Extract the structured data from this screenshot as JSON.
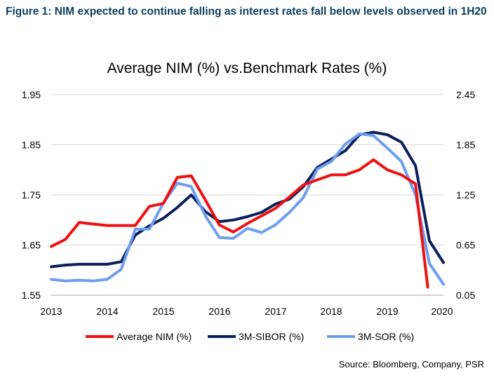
{
  "figure": {
    "title": "Figure 1: NIM expected to continue falling as interest rates fall below levels observed in 1H20",
    "source": "Source: Bloomberg, Company, PSR"
  },
  "colors": {
    "title_text": "#0b3d5c",
    "nim": "#ee1111",
    "sibor": "#0a1f5c",
    "sor": "#6e9ef0",
    "grid": "#d9d9d9"
  },
  "chart_data": {
    "type": "line",
    "title": "Average NIM (%) vs.Benchmark Rates (%)",
    "xlabel": "",
    "ylabel": "",
    "x_ticks": [
      "2013",
      "2014",
      "2015",
      "2016",
      "2017",
      "2018",
      "2019",
      "2020"
    ],
    "xlim": [
      2013,
      2020
    ],
    "ylim_left": [
      1.55,
      1.95
    ],
    "ylim_right": [
      0.05,
      2.45
    ],
    "yticks_left": [
      "1.55",
      "1.65",
      "1.75",
      "1.85",
      "1.95"
    ],
    "yticks_right": [
      "0.05",
      "0.65",
      "1.25",
      "1.85",
      "2.45"
    ],
    "grid": "horizontal",
    "legend": "bottom",
    "series": [
      {
        "name": "Average NIM (%)",
        "axis": "left",
        "x": [
          2013.0,
          2013.25,
          2013.5,
          2013.75,
          2014.0,
          2014.25,
          2014.5,
          2014.75,
          2015.0,
          2015.25,
          2015.5,
          2015.75,
          2016.0,
          2016.25,
          2016.5,
          2016.75,
          2017.0,
          2017.25,
          2017.5,
          2017.75,
          2018.0,
          2018.25,
          2018.5,
          2018.75,
          2019.0,
          2019.25,
          2019.5,
          2019.72
        ],
        "y": [
          1.647,
          1.661,
          1.695,
          1.692,
          1.689,
          1.689,
          1.689,
          1.727,
          1.733,
          1.785,
          1.788,
          1.74,
          1.69,
          1.676,
          1.693,
          1.708,
          1.723,
          1.746,
          1.77,
          1.78,
          1.79,
          1.79,
          1.8,
          1.82,
          1.8,
          1.79,
          1.772,
          1.566
        ]
      },
      {
        "name": "3M-SIBOR (%)",
        "axis": "right",
        "x": [
          2013.0,
          2013.25,
          2013.5,
          2013.75,
          2014.0,
          2014.25,
          2014.5,
          2014.75,
          2015.0,
          2015.25,
          2015.5,
          2015.75,
          2016.0,
          2016.25,
          2016.5,
          2016.75,
          2017.0,
          2017.25,
          2017.5,
          2017.75,
          2018.0,
          2018.25,
          2018.5,
          2018.75,
          2019.0,
          2019.25,
          2019.5,
          2019.75,
          2020.0
        ],
        "y": [
          0.39,
          0.41,
          0.42,
          0.42,
          0.42,
          0.45,
          0.77,
          0.88,
          0.97,
          1.1,
          1.25,
          1.05,
          0.93,
          0.95,
          0.99,
          1.04,
          1.14,
          1.2,
          1.35,
          1.58,
          1.68,
          1.78,
          1.97,
          2.0,
          1.97,
          1.88,
          1.6,
          0.7,
          0.44
        ]
      },
      {
        "name": "3M-SOR (%)",
        "axis": "right",
        "x": [
          2013.0,
          2013.25,
          2013.5,
          2013.75,
          2014.0,
          2014.25,
          2014.5,
          2014.75,
          2015.0,
          2015.25,
          2015.5,
          2015.75,
          2016.0,
          2016.25,
          2016.5,
          2016.75,
          2017.0,
          2017.25,
          2017.5,
          2017.75,
          2018.0,
          2018.25,
          2018.5,
          2018.75,
          2019.0,
          2019.25,
          2019.5,
          2019.75,
          2020.0
        ],
        "y": [
          0.24,
          0.22,
          0.23,
          0.22,
          0.24,
          0.36,
          0.84,
          0.84,
          1.15,
          1.39,
          1.35,
          1.0,
          0.74,
          0.73,
          0.85,
          0.8,
          0.89,
          1.04,
          1.22,
          1.56,
          1.65,
          1.86,
          1.98,
          1.96,
          1.81,
          1.65,
          1.25,
          0.43,
          0.18
        ]
      }
    ]
  }
}
